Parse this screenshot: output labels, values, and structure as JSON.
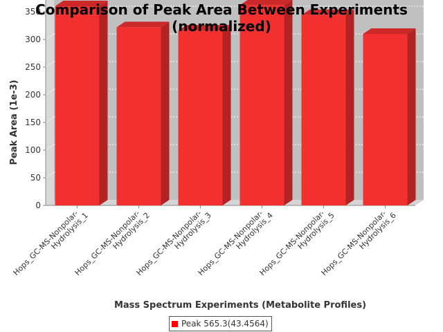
{
  "chart_data": {
    "type": "bar",
    "title": "Comparison of Peak Area Between Experiments",
    "subtitle": "(normalized)",
    "xlabel": "Mass Spectrum Experiments (Metabolite Profiles)",
    "ylabel": "Peak Area (1e-3)",
    "categories": [
      "Hops_GC-MS-Nonpolar-Hydrolysis_1",
      "Hops_GC-MS-Nonpolar-Hydrolysis_2",
      "Hops_GC-MS-Nonpolar-Hydrolysis_3",
      "Hops_GC-MS-Nonpolar-Hydrolysis_4",
      "Hops_GC-MS-Nonpolar-Hydrolysis_5",
      "Hops_GC-MS-Nonpolar-Hydrolysis_6"
    ],
    "category_lines": [
      [
        "Hops_GC-MS-Nonpolar-",
        "Hydrolysis_1"
      ],
      [
        "Hops_GC-MS-Nonpolar-",
        "Hydrolysis_2"
      ],
      [
        "Hops_GC-MS-Nonpolar-",
        "Hydrolysis_3"
      ],
      [
        "Hops_GC-MS-Nonpolar-",
        "Hydrolysis_4"
      ],
      [
        "Hops_GC-MS-Nonpolar-",
        "Hydrolysis_5"
      ],
      [
        "Hops_GC-MS-Nonpolar-",
        "Hydrolysis_6"
      ]
    ],
    "series": [
      {
        "name": "Peak 565.3(43.4564)",
        "values": [
          360,
          322,
          316,
          362,
          344,
          310
        ]
      }
    ],
    "yticks": [
      "0",
      "50",
      "100",
      "150",
      "200",
      "250",
      "300",
      "350"
    ],
    "ylim": [
      0,
      380
    ],
    "grid": true,
    "legend": "bottom-center",
    "colors": {
      "bar_front": "#f23030",
      "bar_side": "#b22424",
      "bar_top": "#cc2a2a",
      "plot_back": "#c0c0c0",
      "plot_floor": "#d4d4d4",
      "plot_wall": "#d8d8d8",
      "grid": "#ffffff"
    }
  }
}
